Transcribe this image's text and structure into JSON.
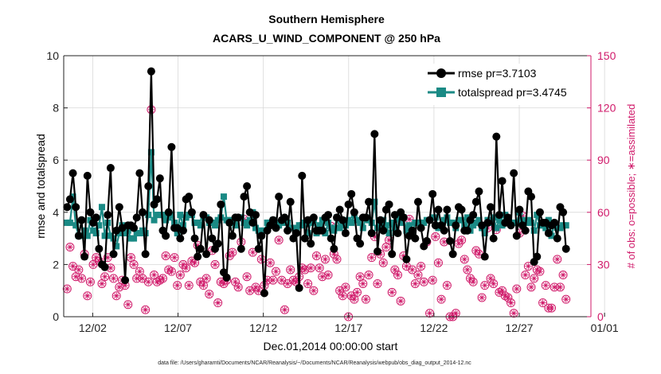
{
  "chart_data": {
    "type": "line",
    "title": "Southern Hemisphere",
    "subtitle": "ACARS_U_WIND_COMPONENT @ 250 hPa",
    "xlabel": "Dec.01,2014 00:00:00 start",
    "ylabel": "rmse and totalspread",
    "y2label": "# of obs: o=possible; ∗=assimilated",
    "footnote": "data file: /Users/gharamti/Documents/NCAR/Reanalysis/~/Documents/NCAR/Reanalysis/webpub/obs_diag_output_2014-12.nc",
    "xlim": [
      0.3,
      31.2
    ],
    "ylim": [
      0,
      10
    ],
    "y2lim": [
      0,
      150
    ],
    "xticks": [
      2,
      7,
      12,
      17,
      22,
      27,
      32
    ],
    "xtick_labels": [
      "12/02",
      "12/07",
      "12/12",
      "12/17",
      "12/22",
      "12/27",
      "01/01"
    ],
    "yticks": [
      0,
      2,
      4,
      6,
      8,
      10
    ],
    "ytick_labels": [
      "0",
      "2",
      "4",
      "6",
      "8",
      "10"
    ],
    "y2ticks": [
      0,
      30,
      60,
      90,
      120,
      150
    ],
    "y2tick_labels": [
      "0",
      "30",
      "60",
      "90",
      "120",
      "150"
    ],
    "colors": {
      "rmse": "#000000",
      "spread": "#1a8a85",
      "obs": "#d01a6a"
    },
    "legend": {
      "placement": "top-right",
      "entries": [
        "rmse pr=3.7103",
        "totalspread pr=3.4745"
      ]
    },
    "series": [
      {
        "name": "rmse pr=3.7103",
        "values": [
          4.2,
          4.5,
          5.5,
          4.2,
          3.1,
          3.7,
          2.3,
          5.4,
          4.0,
          3.6,
          3.8,
          2.6,
          2.0,
          1.9,
          3.9,
          5.7,
          2.4,
          3.3,
          4.2,
          3.4,
          1.4,
          3.5,
          3.5,
          3.4,
          3.8,
          5.5,
          4.0,
          2.4,
          5.0,
          9.4,
          4.3,
          4.5,
          5.3,
          3.3,
          3.1,
          4.0,
          6.5,
          3.4,
          3.4,
          3.0,
          3.3,
          4.5,
          4.6,
          4.0,
          3.0,
          2.3,
          2.6,
          3.9,
          2.4,
          3.7,
          3.0,
          2.6,
          2.8,
          4.3,
          1.7,
          1.5,
          3.6,
          3.1,
          3.8,
          3.8,
          2.6,
          4.6,
          5.0,
          4.0,
          3.6,
          3.9,
          2.6,
          3.1,
          0.9,
          3.3,
          3.5,
          3.7,
          3.4,
          4.6,
          3.7,
          3.8,
          3.3,
          4.4,
          3.0,
          3.2,
          1.1,
          5.4,
          3.0,
          3.7,
          2.8,
          3.8,
          3.3,
          3.3,
          3.3,
          3.8,
          3.9,
          3.0,
          2.6,
          3.8,
          4.1,
          3.7,
          3.2,
          4.3,
          4.7,
          4.0,
          3.0,
          2.8,
          3.8,
          3.8,
          4.4,
          3.2,
          7.0,
          2.5,
          3.7,
          3.3,
          4.1,
          4.3,
          2.4,
          3.9,
          3.2,
          4.0,
          3.8,
          2.2,
          3.1,
          3.3,
          3.0,
          4.4,
          3.4,
          2.7,
          2.9,
          3.7,
          4.7,
          3.5,
          4.1,
          3.5,
          3.3,
          4.1,
          2.9,
          2.4,
          3.5,
          4.2,
          4.1,
          3.3,
          3.3,
          3.7,
          3.9,
          4.4,
          4.8,
          3.5,
          2.3,
          3.6,
          4.2,
          3.0,
          6.9,
          3.9,
          5.2,
          3.6,
          3.8,
          3.5,
          5.5,
          3.1,
          4.1,
          3.5,
          3.3,
          4.8,
          4.6,
          2.1,
          2.3,
          4.0,
          3.6,
          3.6,
          3.2,
          3.5,
          3.6,
          3.0,
          4.2,
          4.0,
          2.6
        ]
      },
      {
        "name": "totalspread pr=3.4745",
        "values": [
          3.6,
          3.6,
          4.6,
          3.5,
          3.1,
          3.1,
          3.3,
          3.1,
          3.7,
          3.3,
          3.2,
          3.5,
          4.2,
          3.1,
          3.6,
          3.1,
          3.0,
          2.7,
          3.2,
          3.5,
          3.2,
          3.3,
          3.0,
          3.0,
          3.2,
          3.2,
          3.3,
          3.2,
          3.9,
          6.3,
          3.7,
          3.9,
          3.9,
          3.9,
          3.7,
          3.8,
          3.9,
          3.6,
          3.2,
          3.9,
          3.5,
          3.8,
          3.9,
          3.9,
          3.6,
          3.6,
          3.5,
          3.8,
          3.8,
          3.6,
          3.6,
          3.5,
          3.7,
          3.8,
          4.6,
          3.7,
          3.6,
          3.7,
          3.5,
          3.8,
          3.8,
          3.6,
          3.5,
          3.7,
          4.0,
          3.4,
          3.3,
          3.1,
          3.3,
          3.6,
          3.6,
          3.7,
          3.6,
          3.5,
          3.6,
          3.7,
          3.6,
          3.4,
          3.4,
          3.3,
          3.5,
          3.5,
          3.6,
          3.2,
          3.6,
          3.7,
          3.2,
          3.5,
          3.7,
          3.2,
          3.6,
          3.4,
          3.3,
          3.8,
          3.4,
          3.6,
          3.5,
          3.7,
          3.6,
          3.9,
          3.7,
          3.6,
          3.4,
          3.8,
          3.7,
          3.6,
          4.4,
          3.4,
          3.5,
          3.7,
          3.5,
          3.2,
          3.6,
          3.4,
          3.8,
          3.6,
          3.8,
          3.3,
          3.5,
          3.2,
          3.6,
          3.6,
          3.6,
          3.6,
          3.7,
          3.7,
          3.8,
          3.8,
          3.4,
          3.5,
          3.7,
          3.8,
          3.6,
          3.6,
          3.4,
          3.7,
          3.7,
          3.5,
          3.8,
          3.3,
          3.5,
          3.6,
          3.7,
          3.4,
          3.2,
          3.7,
          3.6,
          3.8,
          3.4,
          3.7,
          3.5,
          3.9,
          3.7,
          3.6,
          3.6,
          3.6,
          4.0,
          3.7,
          3.6,
          3.7,
          3.6,
          3.3,
          3.9,
          3.5,
          3.5,
          3.4,
          3.7,
          3.1,
          3.6,
          3.4,
          3.4,
          3.5,
          3.5,
          3.5
        ]
      },
      {
        "name": "obs possible",
        "values": [
          16,
          40,
          29,
          23,
          27,
          22,
          36,
          12,
          20,
          30,
          34,
          32,
          19,
          23,
          34,
          28,
          22,
          12,
          17,
          21,
          18,
          7,
          34,
          30,
          22,
          26,
          22,
          4,
          20,
          119,
          24,
          20,
          21,
          22,
          35,
          27,
          26,
          34,
          18,
          24,
          30,
          28,
          18,
          32,
          31,
          41,
          20,
          18,
          22,
          13,
          38,
          30,
          8,
          20,
          19,
          21,
          35,
          37,
          20,
          17,
          43,
          56,
          23,
          15,
          37,
          17,
          15,
          33,
          18,
          21,
          31,
          21,
          26,
          44,
          21,
          4,
          19,
          27,
          21,
          20,
          23,
          28,
          27,
          19,
          28,
          15,
          35,
          28,
          23,
          33,
          24,
          52,
          36,
          33,
          15,
          12,
          17,
          0,
          12,
          10,
          14,
          23,
          19,
          10,
          24,
          34,
          46,
          19,
          36,
          31,
          40,
          44,
          14,
          27,
          24,
          9,
          35,
          29,
          56,
          27,
          19,
          24,
          29,
          20,
          43,
          2,
          21,
          46,
          31,
          10,
          43,
          18,
          0,
          0,
          2,
          42,
          44,
          33,
          27,
          22,
          20,
          38,
          36,
          11,
          18,
          51,
          22,
          19,
          50,
          14,
          15,
          12,
          11,
          8,
          2,
          16,
          48,
          58,
          24,
          29,
          17,
          22,
          27,
          26,
          8,
          18,
          5,
          5,
          17,
          33,
          17,
          24,
          10,
          8,
          3,
          9
        ]
      },
      {
        "name": "obs assimilated",
        "values": [
          16,
          40,
          29,
          23,
          27,
          22,
          36,
          12,
          20,
          30,
          34,
          32,
          19,
          23,
          34,
          28,
          22,
          12,
          17,
          21,
          18,
          7,
          34,
          30,
          22,
          26,
          22,
          4,
          20,
          119,
          24,
          20,
          21,
          22,
          35,
          27,
          26,
          34,
          18,
          24,
          30,
          28,
          18,
          32,
          31,
          41,
          20,
          18,
          22,
          13,
          38,
          30,
          8,
          20,
          19,
          21,
          35,
          37,
          20,
          17,
          43,
          56,
          23,
          15,
          37,
          17,
          15,
          33,
          18,
          21,
          31,
          21,
          26,
          44,
          21,
          4,
          19,
          27,
          21,
          20,
          23,
          28,
          27,
          19,
          28,
          15,
          35,
          28,
          23,
          33,
          24,
          52,
          36,
          33,
          15,
          12,
          17,
          0,
          12,
          10,
          14,
          23,
          19,
          10,
          24,
          34,
          46,
          19,
          36,
          31,
          40,
          44,
          14,
          27,
          24,
          9,
          35,
          29,
          56,
          27,
          19,
          24,
          29,
          20,
          43,
          2,
          21,
          46,
          31,
          10,
          43,
          18,
          0,
          0,
          2,
          42,
          44,
          33,
          27,
          22,
          20,
          38,
          36,
          11,
          18,
          51,
          22,
          19,
          50,
          14,
          15,
          12,
          11,
          8,
          2,
          16,
          48,
          58,
          24,
          29,
          17,
          22,
          27,
          26,
          8,
          18,
          5,
          5,
          17,
          33,
          17,
          24,
          10,
          8,
          3,
          9
        ]
      }
    ]
  }
}
